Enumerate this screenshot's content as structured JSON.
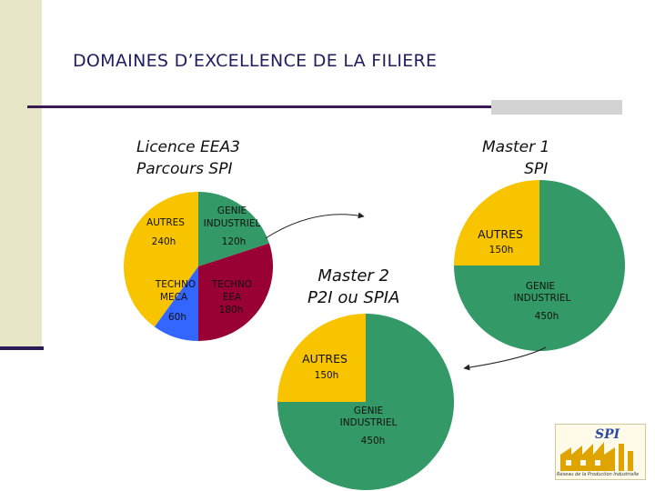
{
  "title": "DOMAINES D’EXCELLENCE DE LA FILIERE",
  "headings": {
    "licence": [
      "Licence EEA3",
      "Parcours SPI"
    ],
    "master1": [
      "Master 1",
      "SPI"
    ],
    "master2": [
      "Master 2",
      "P2I ou SPIA"
    ]
  },
  "colors": {
    "autres": "#f8c400",
    "genie_industriel": "#339966",
    "techno_eea": "#990033",
    "techno_meca": "#3366ff",
    "title_text": "#1e1e60"
  },
  "chart_data": [
    {
      "type": "pie",
      "title": "Licence EEA3 Parcours SPI",
      "slices": [
        {
          "label": "GENIE INDUSTRIEL",
          "value": 120,
          "value_label": "120h",
          "color": "#339966"
        },
        {
          "label": "TECHNO EEA",
          "value": 180,
          "value_label": "180h",
          "color": "#990033"
        },
        {
          "label": "TECHNO MECA",
          "value": 60,
          "value_label": "60h",
          "color": "#3366ff"
        },
        {
          "label": "AUTRES",
          "value": 240,
          "value_label": "240h",
          "color": "#f8c400"
        }
      ]
    },
    {
      "type": "pie",
      "title": "Master 1 SPI",
      "slices": [
        {
          "label": "GENIE INDUSTRIEL",
          "value": 450,
          "value_label": "450h",
          "color": "#339966"
        },
        {
          "label": "AUTRES",
          "value": 150,
          "value_label": "150h",
          "color": "#f8c400"
        }
      ]
    },
    {
      "type": "pie",
      "title": "Master 2 P2I ou SPIA",
      "slices": [
        {
          "label": "GENIE INDUSTRIEL",
          "value": 450,
          "value_label": "450h",
          "color": "#339966"
        },
        {
          "label": "AUTRES",
          "value": 150,
          "value_label": "150h",
          "color": "#f8c400"
        }
      ]
    }
  ],
  "labels": {
    "licence": {
      "autres": "AUTRES",
      "autres_h": "240h",
      "genie": [
        "GENIE",
        "INDUSTRIEL"
      ],
      "genie_h": "120h",
      "meca": [
        "TECHNO",
        "MECA"
      ],
      "meca_h": "60h",
      "eea": [
        "TECHNO",
        "EEA"
      ],
      "eea_h": "180h"
    },
    "master1": {
      "autres": "AUTRES",
      "autres_h": "150h",
      "genie": [
        "GENIE",
        "INDUSTRIEL"
      ],
      "genie_h": "450h"
    },
    "master2": {
      "autres": "AUTRES",
      "autres_h": "150h",
      "genie": [
        "GENIE",
        "INDUSTRIEL"
      ],
      "genie_h": "450h"
    }
  },
  "logo": {
    "caption": "Réseau de la Production Industrielle"
  }
}
